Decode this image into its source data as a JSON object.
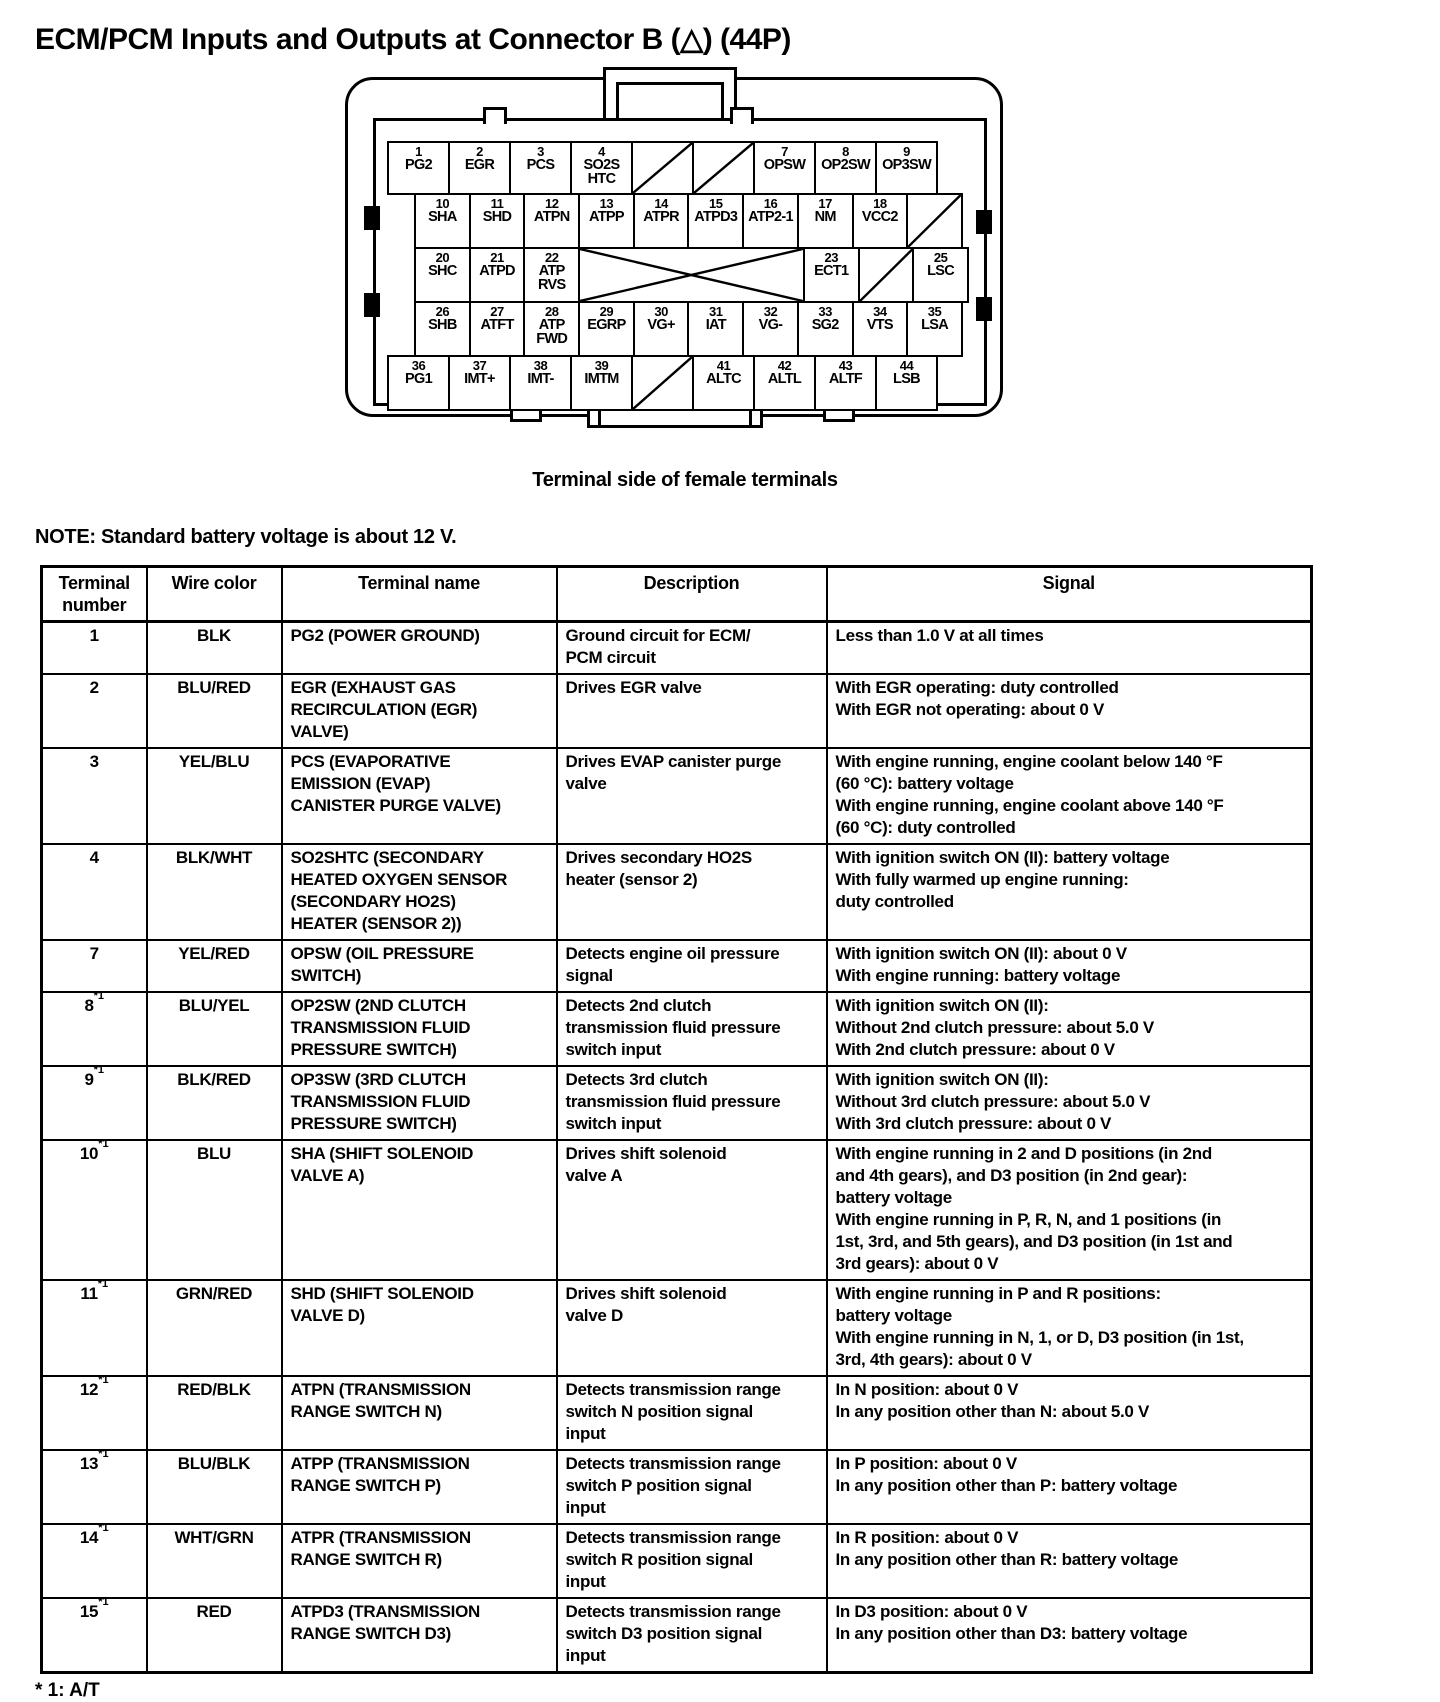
{
  "page": {
    "title": "ECM/PCM Inputs and Outputs at Connector B (△) (44P)",
    "caption": "Terminal side of female terminals",
    "note": "NOTE: Standard battery voltage is about 12 V.",
    "footnote": "* 1: A/T"
  },
  "connector": {
    "rows": [
      {
        "cells": [
          {
            "num": "1",
            "label": "PG2"
          },
          {
            "num": "2",
            "label": "EGR"
          },
          {
            "num": "3",
            "label": "PCS"
          },
          {
            "num": "4",
            "label": "SO2S\nHTC"
          },
          {
            "type": "slash"
          },
          {
            "type": "slash"
          },
          {
            "num": "7",
            "label": "OPSW"
          },
          {
            "num": "8",
            "label": "OP2SW"
          },
          {
            "num": "9",
            "label": "OP3SW"
          }
        ]
      },
      {
        "cells": [
          {
            "num": "10",
            "label": "SHA"
          },
          {
            "num": "11",
            "label": "SHD"
          },
          {
            "num": "12",
            "label": "ATPN"
          },
          {
            "num": "13",
            "label": "ATPP"
          },
          {
            "num": "14",
            "label": "ATPR"
          },
          {
            "num": "15",
            "label": "ATPD3"
          },
          {
            "num": "16",
            "label": "ATP2-1"
          },
          {
            "num": "17",
            "label": "NM"
          },
          {
            "num": "18",
            "label": "VCC2"
          },
          {
            "type": "slash"
          }
        ]
      },
      {
        "cells": [
          {
            "num": "20",
            "label": "SHC"
          },
          {
            "num": "21",
            "label": "ATPD"
          },
          {
            "num": "22",
            "label": "ATP\nRVS"
          },
          {
            "type": "x",
            "span": 4
          },
          {
            "num": "23",
            "label": "ECT1"
          },
          {
            "type": "slash"
          },
          {
            "num": "25",
            "label": "LSC"
          }
        ]
      },
      {
        "cells": [
          {
            "num": "26",
            "label": "SHB"
          },
          {
            "num": "27",
            "label": "ATFT"
          },
          {
            "num": "28",
            "label": "ATP\nFWD"
          },
          {
            "num": "29",
            "label": "EGRP"
          },
          {
            "num": "30",
            "label": "VG+"
          },
          {
            "num": "31",
            "label": "IAT"
          },
          {
            "num": "32",
            "label": "VG-"
          },
          {
            "num": "33",
            "label": "SG2"
          },
          {
            "num": "34",
            "label": "VTS"
          },
          {
            "num": "35",
            "label": "LSA"
          }
        ]
      },
      {
        "cells": [
          {
            "num": "36",
            "label": "PG1"
          },
          {
            "num": "37",
            "label": "IMT+"
          },
          {
            "num": "38",
            "label": "IMT-"
          },
          {
            "num": "39",
            "label": "IMTM"
          },
          {
            "type": "slash"
          },
          {
            "num": "41",
            "label": "ALTC"
          },
          {
            "num": "42",
            "label": "ALTL"
          },
          {
            "num": "43",
            "label": "ALTF"
          },
          {
            "num": "44",
            "label": "LSB"
          }
        ]
      }
    ]
  },
  "table": {
    "headers": [
      "Terminal\nnumber",
      "Wire color",
      "Terminal name",
      "Description",
      "Signal"
    ],
    "rows": [
      {
        "terminal": "1",
        "note": "",
        "wire": "BLK",
        "name": "PG2 (POWER GROUND)",
        "desc": "Ground circuit for ECM/\nPCM circuit",
        "signal": "Less than 1.0 V at all times"
      },
      {
        "terminal": "2",
        "note": "",
        "wire": "BLU/RED",
        "name": "EGR (EXHAUST GAS\nRECIRCULATION (EGR)\nVALVE)",
        "desc": "Drives EGR valve",
        "signal": "With EGR operating: duty controlled\nWith EGR not operating: about 0 V"
      },
      {
        "terminal": "3",
        "note": "",
        "wire": "YEL/BLU",
        "name": "PCS (EVAPORATIVE\nEMISSION (EVAP)\nCANISTER PURGE VALVE)",
        "desc": "Drives EVAP canister purge\nvalve",
        "signal": "With engine running, engine coolant below 140 °F\n(60 °C): battery voltage\nWith engine running, engine coolant above 140 °F\n(60 °C): duty controlled"
      },
      {
        "terminal": "4",
        "note": "",
        "wire": "BLK/WHT",
        "name": "SO2SHTC (SECONDARY\nHEATED OXYGEN SENSOR\n(SECONDARY HO2S)\nHEATER (SENSOR 2))",
        "desc": "Drives secondary HO2S\nheater (sensor 2)",
        "signal": "With ignition switch ON (II): battery voltage\nWith fully warmed up engine running:\nduty controlled"
      },
      {
        "terminal": "7",
        "note": "",
        "wire": "YEL/RED",
        "name": "OPSW (OIL PRESSURE\nSWITCH)",
        "desc": "Detects engine oil pressure\nsignal",
        "signal": "With ignition switch ON (II): about 0 V\nWith engine running: battery voltage"
      },
      {
        "terminal": "8",
        "note": "*1",
        "wire": "BLU/YEL",
        "name": "OP2SW (2ND CLUTCH\nTRANSMISSION FLUID\nPRESSURE SWITCH)",
        "desc": "Detects 2nd clutch\ntransmission fluid pressure\nswitch input",
        "signal": "With ignition switch ON (II):\nWithout 2nd clutch pressure: about 5.0 V\nWith 2nd clutch pressure: about 0 V"
      },
      {
        "terminal": "9",
        "note": "*1",
        "wire": "BLK/RED",
        "name": "OP3SW (3RD CLUTCH\nTRANSMISSION FLUID\nPRESSURE SWITCH)",
        "desc": "Detects 3rd clutch\ntransmission fluid pressure\nswitch input",
        "signal": "With ignition switch ON (II):\nWithout 3rd clutch pressure: about 5.0 V\nWith 3rd clutch pressure: about 0 V"
      },
      {
        "terminal": "10",
        "note": "*1",
        "wire": "BLU",
        "name": "SHA (SHIFT SOLENOID\nVALVE A)",
        "desc": "Drives shift solenoid\nvalve A",
        "signal": "With engine running in 2 and D positions (in 2nd\nand 4th gears), and D3 position (in 2nd gear):\nbattery voltage\nWith engine running in P, R, N, and 1 positions (in\n1st, 3rd, and 5th gears), and D3 position (in 1st and\n3rd gears): about 0 V"
      },
      {
        "terminal": "11",
        "note": "*1",
        "wire": "GRN/RED",
        "name": "SHD (SHIFT SOLENOID\nVALVE D)",
        "desc": "Drives shift solenoid\nvalve D",
        "signal": "With engine running in P and R positions:\nbattery voltage\nWith engine running in N, 1, or D, D3 position (in 1st,\n3rd, 4th gears): about 0 V"
      },
      {
        "terminal": "12",
        "note": "*1",
        "wire": "RED/BLK",
        "name": "ATPN (TRANSMISSION\nRANGE SWITCH N)",
        "desc": "Detects transmission range\nswitch N position signal\ninput",
        "signal": "In N position: about 0 V\nIn any position other than N: about 5.0 V"
      },
      {
        "terminal": "13",
        "note": "*1",
        "wire": "BLU/BLK",
        "name": "ATPP (TRANSMISSION\nRANGE SWITCH P)",
        "desc": "Detects transmission range\nswitch P position signal\ninput",
        "signal": "In P position: about 0 V\nIn any position other than P: battery voltage"
      },
      {
        "terminal": "14",
        "note": "*1",
        "wire": "WHT/GRN",
        "name": "ATPR (TRANSMISSION\nRANGE SWITCH R)",
        "desc": "Detects transmission range\nswitch R position signal\ninput",
        "signal": "In R position: about 0 V\nIn any position other than R: battery voltage"
      },
      {
        "terminal": "15",
        "note": "*1",
        "wire": "RED",
        "name": "ATPD3 (TRANSMISSION\nRANGE SWITCH D3)",
        "desc": "Detects transmission range\nswitch D3 position signal\ninput",
        "signal": "In D3 position: about 0 V\nIn any position other than D3: battery voltage"
      }
    ]
  }
}
